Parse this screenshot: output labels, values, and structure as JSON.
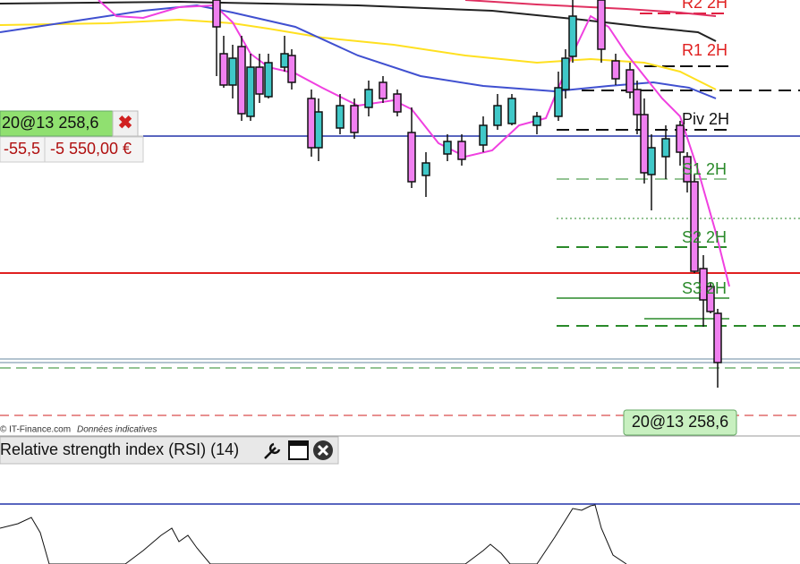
{
  "pivots": {
    "r2": "R2 2H",
    "r1": "R1 2H",
    "piv": "Piv 2H",
    "s1": "S1 2H",
    "s2": "S2 2H",
    "s3": "S3 2H"
  },
  "position": {
    "label": "20@13 258,6",
    "points": "-55,5",
    "amount": "-5 550,00 €"
  },
  "footer": {
    "copyright": "© IT-Finance.com",
    "note": "Données indicatives"
  },
  "price_label": "20@13 258,6",
  "indicator": {
    "title": "Relative strength index (RSI) (14)"
  }
}
